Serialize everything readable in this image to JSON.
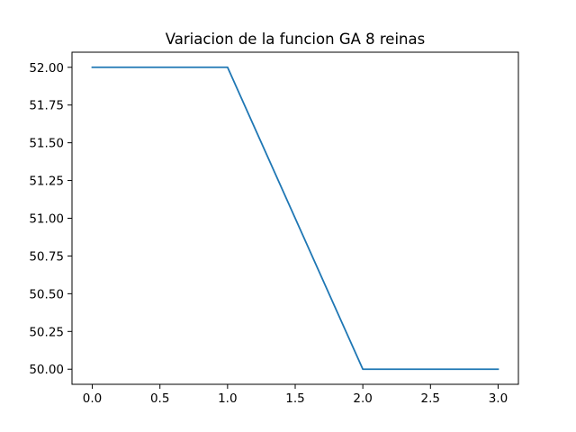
{
  "chart_data": {
    "type": "line",
    "title": "Variacion de la funcion GA 8 reinas",
    "xlabel": "",
    "ylabel": "",
    "xlim": [
      -0.15,
      3.15
    ],
    "ylim": [
      49.9,
      52.1
    ],
    "grid": false,
    "x_ticks": [
      0.0,
      0.5,
      1.0,
      1.5,
      2.0,
      2.5,
      3.0
    ],
    "x_tick_labels": [
      "0.0",
      "0.5",
      "1.0",
      "1.5",
      "2.0",
      "2.5",
      "3.0"
    ],
    "y_ticks": [
      50.0,
      50.25,
      50.5,
      50.75,
      51.0,
      51.25,
      51.5,
      51.75,
      52.0
    ],
    "y_tick_labels": [
      "50.00",
      "50.25",
      "50.50",
      "50.75",
      "51.00",
      "51.25",
      "51.50",
      "51.75",
      "52.00"
    ],
    "series": [
      {
        "color": "#1f77b4",
        "x": [
          0,
          1,
          2,
          3
        ],
        "y": [
          52,
          52,
          50,
          50
        ]
      }
    ]
  }
}
